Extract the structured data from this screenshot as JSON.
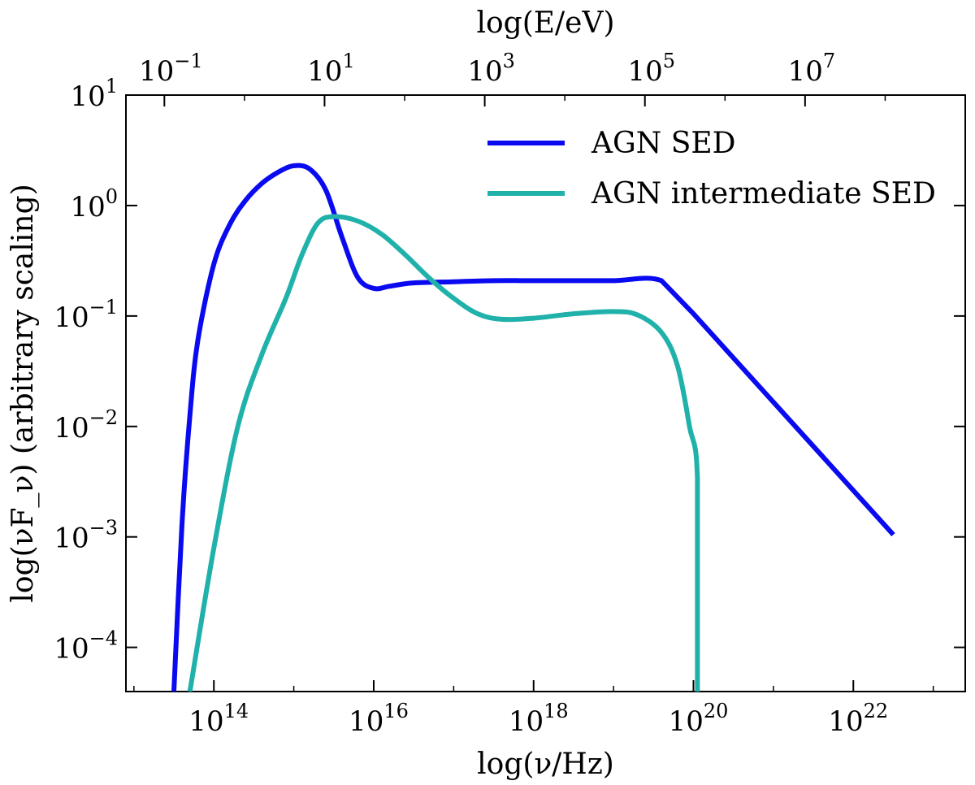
{
  "chart_data": {
    "type": "line",
    "xlabel": "log(ν/Hz)",
    "ylabel": "log(νF_ν) (arbitrary scaling)",
    "top_xlabel": "log(E/eV)",
    "x_scale": "log",
    "y_scale": "log",
    "xlim_log10": [
      12.9,
      23.4
    ],
    "ylim_log10": [
      -4.4,
      1.0
    ],
    "top_xlim_log10": [
      -1.48,
      9.0
    ],
    "x_ticks": [
      {
        "base": "10",
        "exp": "14",
        "log": 14
      },
      {
        "base": "10",
        "exp": "16",
        "log": 16
      },
      {
        "base": "10",
        "exp": "18",
        "log": 18
      },
      {
        "base": "10",
        "exp": "20",
        "log": 20
      },
      {
        "base": "10",
        "exp": "22",
        "log": 22
      }
    ],
    "y_ticks": [
      {
        "base": "10",
        "exp": "1",
        "log": 1
      },
      {
        "base": "10",
        "exp": "0",
        "log": 0
      },
      {
        "base": "10",
        "exp": "−1",
        "log": -1
      },
      {
        "base": "10",
        "exp": "−2",
        "log": -2
      },
      {
        "base": "10",
        "exp": "−3",
        "log": -3
      },
      {
        "base": "10",
        "exp": "−4",
        "log": -4
      }
    ],
    "top_x_ticks": [
      {
        "base": "10",
        "exp": "−1",
        "log": -1
      },
      {
        "base": "10",
        "exp": "1",
        "log": 1
      },
      {
        "base": "10",
        "exp": "3",
        "log": 3
      },
      {
        "base": "10",
        "exp": "5",
        "log": 5
      },
      {
        "base": "10",
        "exp": "7",
        "log": 7
      }
    ],
    "legend_position": "upper-right",
    "series": [
      {
        "name": "AGN SED",
        "color": "#0a0af0",
        "x_log10": [
          13.5,
          13.6,
          13.7,
          13.8,
          14.0,
          14.2,
          14.4,
          14.6,
          14.8,
          15.0,
          15.2,
          15.4,
          15.6,
          15.8,
          16.0,
          16.2,
          16.5,
          17.0,
          17.5,
          18.0,
          18.5,
          19.0,
          19.6,
          20.0,
          20.5,
          21.0,
          21.5,
          22.0,
          22.5
        ],
        "y_log10": [
          -4.4,
          -2.9,
          -1.9,
          -1.22,
          -0.53,
          -0.17,
          0.05,
          0.2,
          0.3,
          0.36,
          0.33,
          0.14,
          -0.28,
          -0.65,
          -0.75,
          -0.73,
          -0.7,
          -0.69,
          -0.68,
          -0.68,
          -0.68,
          -0.68,
          -0.68,
          -0.98,
          -1.38,
          -1.78,
          -2.18,
          -2.58,
          -2.98
        ]
      },
      {
        "name": "AGN intermediate SED",
        "color": "#20b2aa",
        "x_log10": [
          13.7,
          14.0,
          14.3,
          14.6,
          14.9,
          15.1,
          15.3,
          15.5,
          15.8,
          16.1,
          16.4,
          16.7,
          17.0,
          17.3,
          17.6,
          18.0,
          18.5,
          19.0,
          19.3,
          19.6,
          19.8,
          19.95,
          20.05,
          20.05
        ],
        "y_log10": [
          -4.4,
          -3.1,
          -2.0,
          -1.35,
          -0.84,
          -0.45,
          -0.16,
          -0.1,
          -0.14,
          -0.26,
          -0.45,
          -0.66,
          -0.84,
          -0.98,
          -1.03,
          -1.02,
          -0.98,
          -0.96,
          -0.99,
          -1.15,
          -1.45,
          -2.0,
          -2.48,
          -4.4
        ]
      }
    ]
  }
}
